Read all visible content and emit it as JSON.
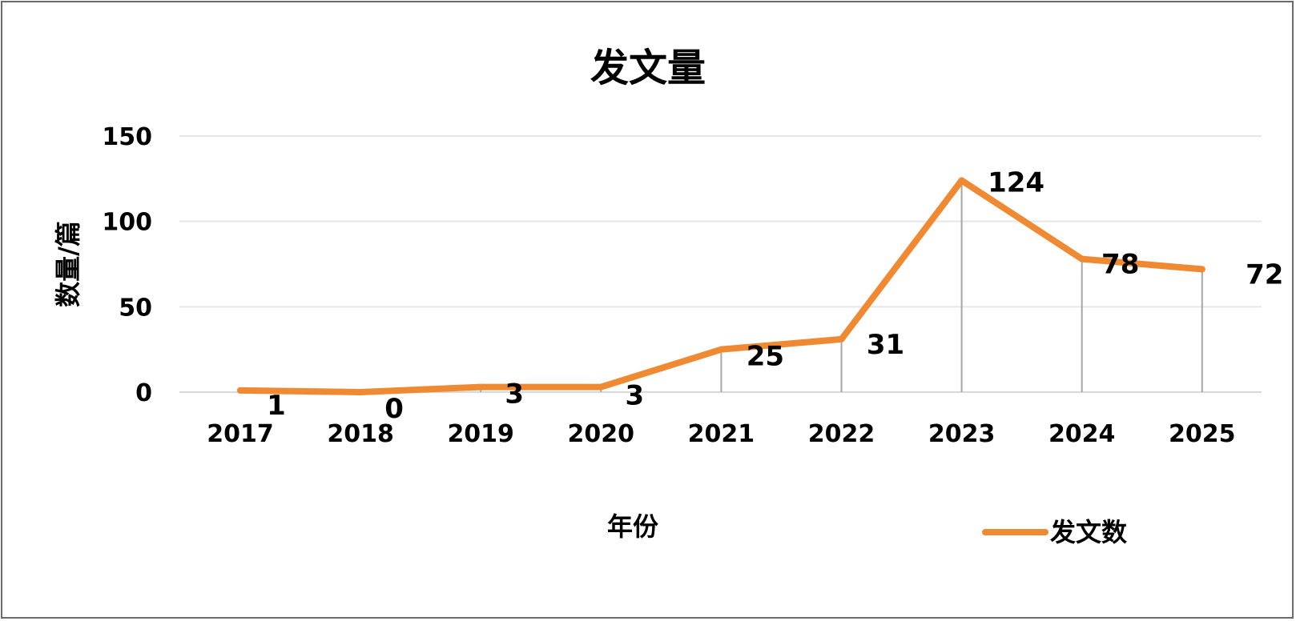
{
  "chart_data": {
    "type": "line",
    "title": "发文量",
    "xlabel": "年份",
    "ylabel": "数量/篇",
    "categories": [
      "2017",
      "2018",
      "2019",
      "2020",
      "2021",
      "2022",
      "2023",
      "2024",
      "2025"
    ],
    "series": [
      {
        "name": "发文数",
        "values": [
          1,
          0,
          3,
          3,
          25,
          31,
          124,
          78,
          72
        ],
        "color": "#f08a32"
      }
    ],
    "ylim": [
      0,
      150
    ],
    "yticks": [
      "0",
      "50",
      "100",
      "150"
    ],
    "grid": true,
    "drop_lines": true,
    "legend_position": "bottom-right"
  }
}
